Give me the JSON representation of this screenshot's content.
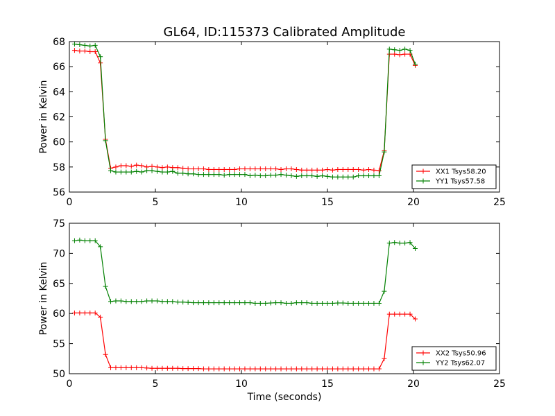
{
  "chart_data": [
    {
      "type": "line",
      "title": "GL64, ID:115373 Calibrated Amplitude",
      "xlabel": "",
      "ylabel": "Power in Kelvin",
      "xlim": [
        0,
        25
      ],
      "ylim": [
        56,
        68
      ],
      "xticks": [
        "0",
        "5",
        "10",
        "15",
        "20",
        "25"
      ],
      "yticks": [
        "56",
        "58",
        "60",
        "62",
        "64",
        "66",
        "68"
      ],
      "grid": false,
      "legend_position": "lower-right",
      "x": [
        0.3,
        0.6,
        0.9,
        1.2,
        1.5,
        1.8,
        2.1,
        2.4,
        2.7,
        3.0,
        3.3,
        3.6,
        3.9,
        4.2,
        4.5,
        4.8,
        5.1,
        5.4,
        5.7,
        6.0,
        6.3,
        6.6,
        6.9,
        7.2,
        7.5,
        7.8,
        8.1,
        8.4,
        8.7,
        9.0,
        9.3,
        9.6,
        9.9,
        10.2,
        10.5,
        10.8,
        11.1,
        11.4,
        11.7,
        12.0,
        12.3,
        12.6,
        12.9,
        13.2,
        13.5,
        13.8,
        14.1,
        14.4,
        14.7,
        15.0,
        15.3,
        15.6,
        15.9,
        16.2,
        16.5,
        16.8,
        17.1,
        17.4,
        17.7,
        18.0,
        18.3,
        18.6,
        18.9,
        19.2,
        19.5,
        19.8,
        20.1
      ],
      "series": [
        {
          "name": "XX1 Tsys58.20",
          "color": "#ff0000",
          "values": [
            67.3,
            67.25,
            67.25,
            67.2,
            67.2,
            66.3,
            60.2,
            57.9,
            58.0,
            58.1,
            58.1,
            58.05,
            58.15,
            58.1,
            58.0,
            58.05,
            58.0,
            57.95,
            58.0,
            57.95,
            57.95,
            57.9,
            57.85,
            57.85,
            57.85,
            57.85,
            57.8,
            57.8,
            57.8,
            57.8,
            57.8,
            57.8,
            57.85,
            57.85,
            57.85,
            57.85,
            57.85,
            57.85,
            57.85,
            57.85,
            57.8,
            57.85,
            57.85,
            57.8,
            57.75,
            57.75,
            57.75,
            57.75,
            57.75,
            57.8,
            57.75,
            57.8,
            57.8,
            57.8,
            57.8,
            57.8,
            57.75,
            57.8,
            57.75,
            57.7,
            59.3,
            67.0,
            67.0,
            66.95,
            67.0,
            67.0,
            66.1
          ]
        },
        {
          "name": "YY1 Tsys57.58",
          "color": "#008000",
          "values": [
            67.8,
            67.75,
            67.7,
            67.65,
            67.7,
            66.8,
            60.1,
            57.7,
            57.6,
            57.6,
            57.6,
            57.6,
            57.65,
            57.6,
            57.7,
            57.7,
            57.65,
            57.6,
            57.6,
            57.65,
            57.5,
            57.5,
            57.45,
            57.45,
            57.4,
            57.4,
            57.4,
            57.4,
            57.4,
            57.35,
            57.4,
            57.4,
            57.4,
            57.4,
            57.3,
            57.35,
            57.3,
            57.3,
            57.35,
            57.35,
            57.4,
            57.35,
            57.3,
            57.25,
            57.3,
            57.3,
            57.3,
            57.25,
            57.3,
            57.25,
            57.2,
            57.2,
            57.2,
            57.2,
            57.2,
            57.3,
            57.3,
            57.3,
            57.3,
            57.3,
            59.2,
            67.4,
            67.35,
            67.3,
            67.4,
            67.3,
            66.2
          ]
        }
      ]
    },
    {
      "type": "line",
      "title": "",
      "xlabel": "Time (seconds)",
      "ylabel": "Power in Kelvin",
      "xlim": [
        0,
        25
      ],
      "ylim": [
        50,
        75
      ],
      "xticks": [
        "0",
        "5",
        "10",
        "15",
        "20",
        "25"
      ],
      "yticks": [
        "50",
        "55",
        "60",
        "65",
        "70",
        "75"
      ],
      "grid": false,
      "legend_position": "lower-right",
      "x": [
        0.3,
        0.6,
        0.9,
        1.2,
        1.5,
        1.8,
        2.1,
        2.4,
        2.7,
        3.0,
        3.3,
        3.6,
        3.9,
        4.2,
        4.5,
        4.8,
        5.1,
        5.4,
        5.7,
        6.0,
        6.3,
        6.6,
        6.9,
        7.2,
        7.5,
        7.8,
        8.1,
        8.4,
        8.7,
        9.0,
        9.3,
        9.6,
        9.9,
        10.2,
        10.5,
        10.8,
        11.1,
        11.4,
        11.7,
        12.0,
        12.3,
        12.6,
        12.9,
        13.2,
        13.5,
        13.8,
        14.1,
        14.4,
        14.7,
        15.0,
        15.3,
        15.6,
        15.9,
        16.2,
        16.5,
        16.8,
        17.1,
        17.4,
        17.7,
        18.0,
        18.3,
        18.6,
        18.9,
        19.2,
        19.5,
        19.8,
        20.1
      ],
      "series": [
        {
          "name": "XX2 Tsys50.96",
          "color": "#ff0000",
          "values": [
            60.1,
            60.1,
            60.1,
            60.1,
            60.1,
            59.4,
            53.2,
            51.0,
            51.0,
            51.0,
            51.0,
            51.0,
            51.0,
            51.0,
            50.95,
            50.9,
            50.9,
            50.9,
            50.9,
            50.9,
            50.9,
            50.85,
            50.85,
            50.85,
            50.85,
            50.8,
            50.8,
            50.8,
            50.8,
            50.8,
            50.8,
            50.8,
            50.8,
            50.8,
            50.8,
            50.8,
            50.8,
            50.8,
            50.8,
            50.8,
            50.8,
            50.8,
            50.8,
            50.8,
            50.8,
            50.8,
            50.8,
            50.8,
            50.8,
            50.8,
            50.8,
            50.8,
            50.8,
            50.8,
            50.8,
            50.8,
            50.8,
            50.8,
            50.8,
            50.8,
            52.5,
            59.9,
            59.9,
            59.9,
            59.9,
            59.9,
            59.1
          ]
        },
        {
          "name": "YY2 Tsys62.07",
          "color": "#008000",
          "values": [
            72.1,
            72.2,
            72.1,
            72.1,
            72.1,
            71.1,
            64.5,
            62.0,
            62.1,
            62.1,
            62.0,
            62.0,
            62.0,
            62.0,
            62.1,
            62.1,
            62.1,
            62.0,
            62.0,
            62.0,
            61.9,
            61.9,
            61.85,
            61.8,
            61.8,
            61.8,
            61.8,
            61.8,
            61.8,
            61.8,
            61.8,
            61.8,
            61.8,
            61.8,
            61.8,
            61.7,
            61.7,
            61.7,
            61.75,
            61.8,
            61.8,
            61.7,
            61.7,
            61.8,
            61.8,
            61.8,
            61.7,
            61.7,
            61.7,
            61.7,
            61.7,
            61.75,
            61.75,
            61.7,
            61.7,
            61.7,
            61.7,
            61.7,
            61.7,
            61.7,
            63.7,
            71.7,
            71.8,
            71.7,
            71.7,
            71.8,
            70.8
          ]
        }
      ]
    }
  ]
}
